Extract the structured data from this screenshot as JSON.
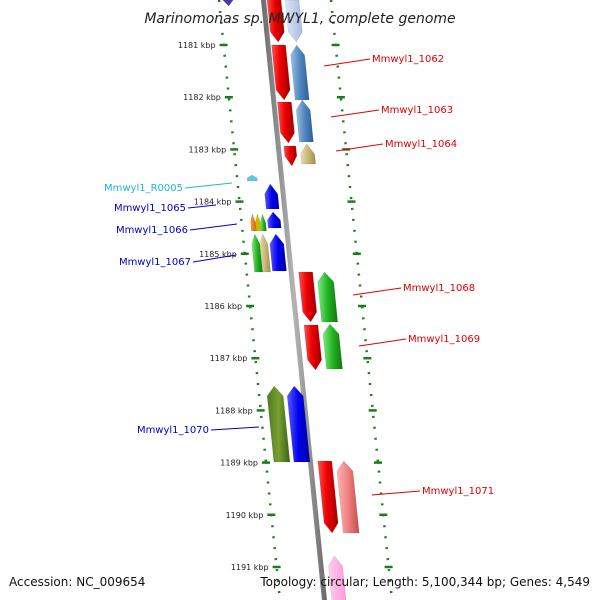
{
  "title": "Marinomonas sp. MWYL1, complete genome",
  "footer": {
    "accession": "Accession: NC_009654",
    "topology": "Topology: circular; Length: 5,100,344 bp; Genes: 4,549"
  },
  "kbp_ticks": [
    "1181 kbp",
    "1182 kbp",
    "1183 kbp",
    "1184 kbp",
    "1185 kbp",
    "1186 kbp",
    "1187 kbp",
    "1188 kbp",
    "1189 kbp",
    "1190 kbp",
    "1191 kbp"
  ],
  "colors": {
    "forward_label": "#e00000",
    "reverse_label": "#0000c8",
    "rna_label": "#20b4d8",
    "backbone": "#888888",
    "tick": "#1e7a1e"
  },
  "genes_forward": [
    {
      "name": "Mmwyl1_1062"
    },
    {
      "name": "Mmwyl1_1063"
    },
    {
      "name": "Mmwyl1_1064"
    },
    {
      "name": "Mmwyl1_1068"
    },
    {
      "name": "Mmwyl1_1069"
    },
    {
      "name": "Mmwyl1_1071"
    }
  ],
  "genes_reverse": [
    {
      "name": "Mmwyl1_R0005",
      "kind": "rna"
    },
    {
      "name": "Mmwyl1_1065"
    },
    {
      "name": "Mmwyl1_1066"
    },
    {
      "name": "Mmwyl1_1067"
    },
    {
      "name": "Mmwyl1_1070"
    }
  ]
}
